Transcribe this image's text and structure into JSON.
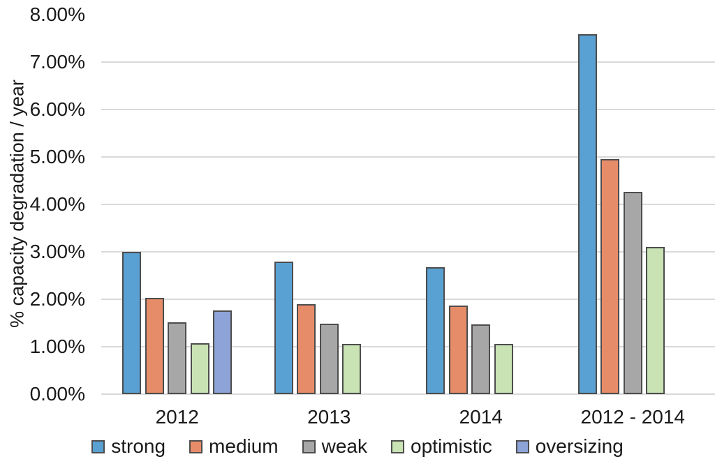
{
  "chart_data": {
    "type": "bar",
    "title": "",
    "xlabel": "",
    "ylabel": "% capacity degradation / year",
    "categories": [
      "2012",
      "2013",
      "2014",
      "2012 - 2014"
    ],
    "series": [
      {
        "name": "strong",
        "color": "#59A1D2",
        "values": [
          3.0,
          2.79,
          2.68,
          7.59
        ]
      },
      {
        "name": "medium",
        "color": "#E78C68",
        "values": [
          2.03,
          1.9,
          1.87,
          4.95
        ]
      },
      {
        "name": "weak",
        "color": "#A7A7A7",
        "values": [
          1.51,
          1.48,
          1.47,
          4.26
        ]
      },
      {
        "name": "optimistic",
        "color": "#C9E3B4",
        "values": [
          1.07,
          1.06,
          1.06,
          3.11
        ]
      },
      {
        "name": "oversizing",
        "color": "#8EA4D8",
        "values": [
          1.76,
          null,
          null,
          null
        ]
      }
    ],
    "ylim": [
      0,
      8
    ],
    "yticks": [
      "0.00%",
      "1.00%",
      "2.00%",
      "3.00%",
      "4.00%",
      "5.00%",
      "6.00%",
      "7.00%",
      "8.00%"
    ],
    "grid": true,
    "gridline_color": "#D9D9D9",
    "bar_border_color": "#4D4D4D",
    "text_color": "#1a1a1a",
    "background_color": "#ffffff",
    "legend_position": "bottom"
  }
}
